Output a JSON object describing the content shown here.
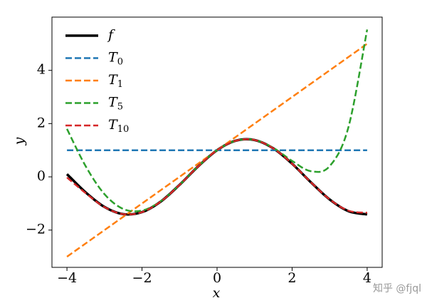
{
  "chart_data": {
    "type": "line",
    "x_label": "x",
    "y_label": "y",
    "x": [
      -4,
      -3.5,
      -3,
      -2.5,
      -2,
      -1.5,
      -1,
      -0.5,
      0,
      0.5,
      1,
      1.5,
      2,
      2.5,
      3,
      3.5,
      4
    ],
    "series": [
      {
        "name": "f",
        "color": "#000000",
        "dash": false,
        "values": [
          0.103,
          -0.586,
          -1.131,
          -1.4,
          -1.325,
          -0.927,
          -0.301,
          0.398,
          1,
          1.357,
          1.382,
          1.068,
          0.493,
          -0.203,
          -0.849,
          -1.287,
          -1.41
        ]
      },
      {
        "name": "T0",
        "color": "#1f77b4",
        "dash": true,
        "values": [
          1,
          1,
          1,
          1,
          1,
          1,
          1,
          1,
          1,
          1,
          1,
          1,
          1,
          1,
          1,
          1,
          1
        ]
      },
      {
        "name": "T1",
        "color": "#ff7f0e",
        "dash": true,
        "values": [
          -3,
          -2.5,
          -2,
          -1.5,
          -1,
          -0.5,
          0,
          0.5,
          1,
          1.5,
          2,
          2.5,
          3,
          3.5,
          4,
          4.5,
          5
        ]
      },
      {
        "name": "T5",
        "color": "#2ca02c",
        "dash": true,
        "values": [
          1.8,
          0.397,
          -0.65,
          -1.207,
          -1.267,
          -0.915,
          -0.3,
          0.398,
          1,
          1.357,
          1.383,
          1.087,
          0.6,
          0.212,
          0.4,
          1.859,
          5.533
        ]
      },
      {
        "name": "T10",
        "color": "#d62728",
        "dash": true,
        "values": [
          -0.024,
          -0.613,
          -1.136,
          -1.4,
          -1.326,
          -0.927,
          -0.301,
          0.398,
          1,
          1.357,
          1.382,
          1.068,
          0.493,
          -0.202,
          -0.846,
          -1.271,
          -1.349
        ]
      }
    ],
    "xlim": [
      -4.4,
      4.4
    ],
    "ylim": [
      -3.4,
      6.0
    ],
    "xticks": [
      {
        "value": -4,
        "label": "−4"
      },
      {
        "value": -2,
        "label": "−2"
      },
      0,
      2,
      4
    ],
    "yticks": [
      {
        "value": -2,
        "label": "−2"
      },
      0,
      2,
      4
    ],
    "legend": "upper left",
    "watermark": "知乎 @fjql"
  }
}
